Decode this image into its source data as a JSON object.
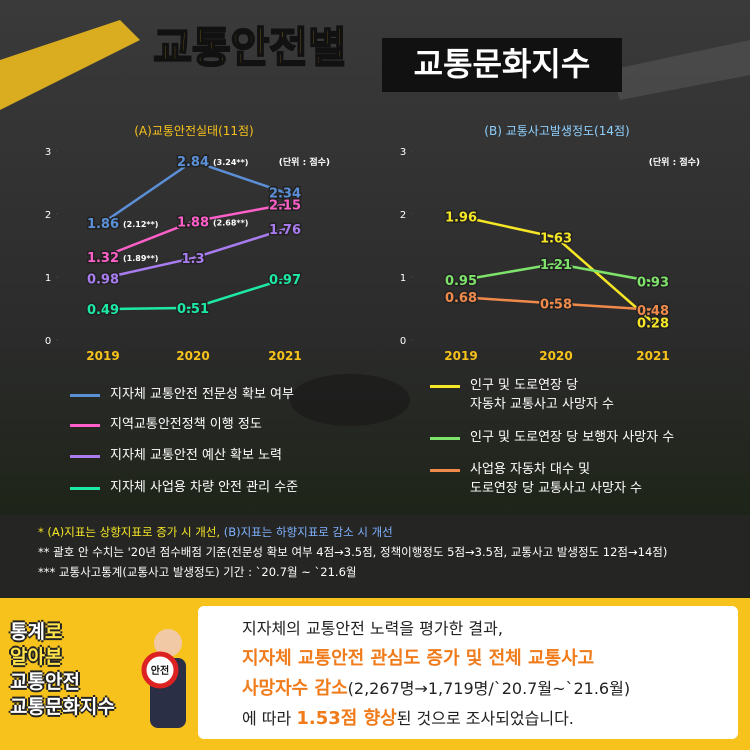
{
  "header": {
    "title": "교통안전별",
    "subtitle": "교통문화지수"
  },
  "chart_data": [
    {
      "type": "line",
      "title": "(A)교통안전실태(11점)",
      "unit": "(단위 : 점수)",
      "categories": [
        "2019",
        "2020",
        "2021"
      ],
      "ylim": [
        0,
        3
      ],
      "yticks": [
        0,
        1,
        2,
        3
      ],
      "series": [
        {
          "name": "지자체 교통안전 전문성 확보 여부",
          "color": "#5b8fd6",
          "values": [
            1.86,
            2.84,
            2.34
          ],
          "notes": [
            "(2.12**)",
            "(3.24**)",
            null
          ]
        },
        {
          "name": "지역교통안전정책 이행 정도",
          "color": "#ff5fc8",
          "values": [
            1.32,
            1.88,
            2.15
          ],
          "notes": [
            "(1.89**)",
            "(2.68**)",
            null
          ]
        },
        {
          "name": "지자체 교통안전 예산 확보 노력",
          "color": "#a97cf0",
          "values": [
            0.98,
            1.3,
            1.76
          ]
        },
        {
          "name": "지자체 사업용 차량 안전 관리 수준",
          "color": "#1de9a6",
          "values": [
            0.49,
            0.51,
            0.97
          ]
        }
      ]
    },
    {
      "type": "line",
      "title": "(B) 교통사고발생정도(14점)",
      "unit": "(단위 : 점수)",
      "categories": [
        "2019",
        "2020",
        "2021"
      ],
      "ylim": [
        0,
        3
      ],
      "yticks": [
        0,
        1,
        2,
        3
      ],
      "series": [
        {
          "name": "인구 및 도로연장 당\n자동차 교통사고 사망자 수",
          "color": "#f5e626",
          "values": [
            1.96,
            1.63,
            0.28
          ]
        },
        {
          "name": "인구 및 도로연장 당 보행자 사망자 수",
          "color": "#7ee36a",
          "values": [
            0.95,
            1.21,
            0.93
          ]
        },
        {
          "name": "사업용 자동차 대수 및\n도로연장 당 교통사고 사망자 수",
          "color": "#f08a4b",
          "values": [
            0.68,
            0.58,
            0.48
          ]
        }
      ]
    }
  ],
  "footnotes": [
    [
      {
        "text": "* (A)지표는 상향지표로 증가 시 개선, ",
        "color": "#f5e626"
      },
      {
        "text": "(B)지표는 하향지표로 감소 시 개선",
        "color": "#7fb2ff"
      }
    ],
    [
      {
        "text": "** 괄호 안 수치는 '20년 점수배점 기준(전문성 확보 여부 4점→3.5점, 정책이행정도 5점→3.5점, 교통사고 발생정도 12점→14점)",
        "color": "#ffffff"
      }
    ],
    [
      {
        "text": "*** 교통사고통계(교통사고 발생정도) 기간 : `20.7월 ~ `21.6월",
        "color": "#ffffff"
      }
    ]
  ],
  "badge": {
    "lines": [
      [
        {
          "text": "통계",
          "hl": false
        },
        {
          "text": "로",
          "hl": true
        }
      ],
      [
        {
          "text": "알아본",
          "hl": true
        }
      ],
      [
        {
          "text": "교통안전",
          "hl": false
        }
      ],
      [
        {
          "text": "교통문화지수",
          "hl": false
        }
      ]
    ],
    "sign": "안전"
  },
  "summary": [
    [
      {
        "text": "지자체의 교통안전 노력을 평가한 결과,",
        "em": false
      }
    ],
    [
      {
        "text": "지자체 교통안전 관심도 증가 및 전체 교통사고",
        "em": true
      }
    ],
    [
      {
        "text": "사망자수 감소",
        "em": true
      },
      {
        "text": "(2,267명→1,719명/`20.7월~`21.6월)",
        "em": false
      }
    ],
    [
      {
        "text": "에 따라 ",
        "em": false
      },
      {
        "text": "1.53점 향상",
        "em": true
      },
      {
        "text": "된 것으로 조사되었습니다.",
        "em": false
      }
    ]
  ]
}
